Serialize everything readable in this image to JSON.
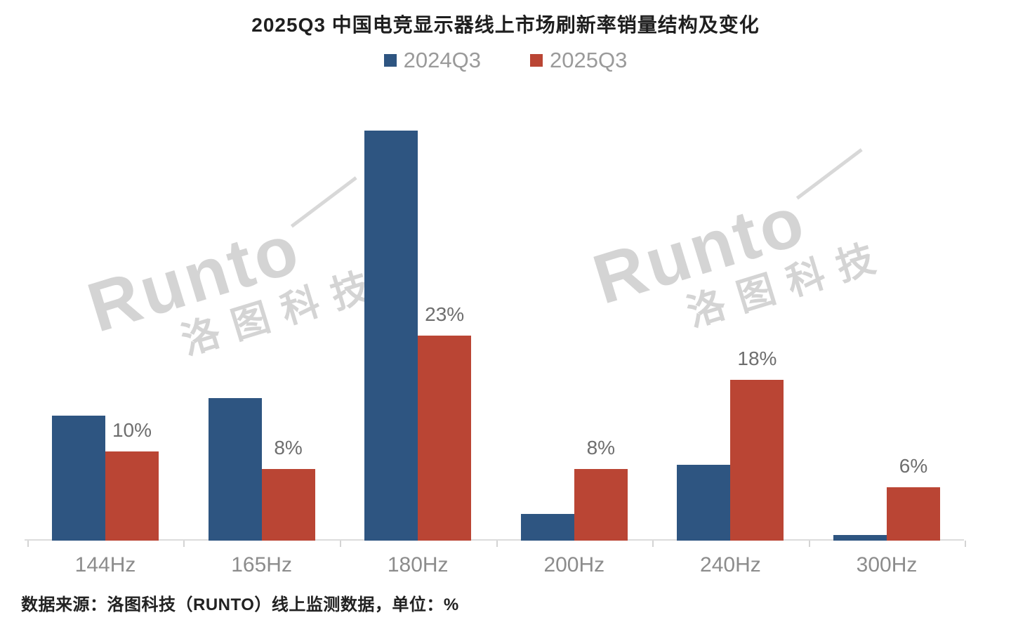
{
  "title": "2025Q3 中国电竞显示器线上市场刷新率销量结构及变化",
  "source_note": "数据来源：洛图科技（RUNTO）线上监测数据，单位：%",
  "watermark": {
    "en": "Runto",
    "cn": "洛图科技"
  },
  "colors": {
    "series_2024q3": "#2E5581",
    "series_2025q3": "#BA4534",
    "axis": "#dcdcdc",
    "data_label": "#6e6e6e",
    "category_label": "#8c8c8c",
    "legend_text": "#9a9a9a"
  },
  "chart_data": {
    "type": "bar",
    "categories": [
      "144Hz",
      "165Hz",
      "180Hz",
      "200Hz",
      "240Hz",
      "300Hz"
    ],
    "series": [
      {
        "name": "2024Q3",
        "color": "#2E5581",
        "values": [
          14,
          16,
          46,
          3,
          8.5,
          0.6
        ],
        "labels_shown": false
      },
      {
        "name": "2025Q3",
        "color": "#BA4534",
        "values": [
          10,
          8,
          23,
          8,
          18,
          6
        ],
        "data_labels": [
          "10%",
          "8%",
          "23%",
          "8%",
          "18%",
          "6%"
        ],
        "labels_shown": true
      }
    ],
    "unit": "%",
    "ylabel": "",
    "xlabel": "",
    "ylim": [
      0,
      50
    ],
    "grid": false,
    "legend_position": "top"
  }
}
